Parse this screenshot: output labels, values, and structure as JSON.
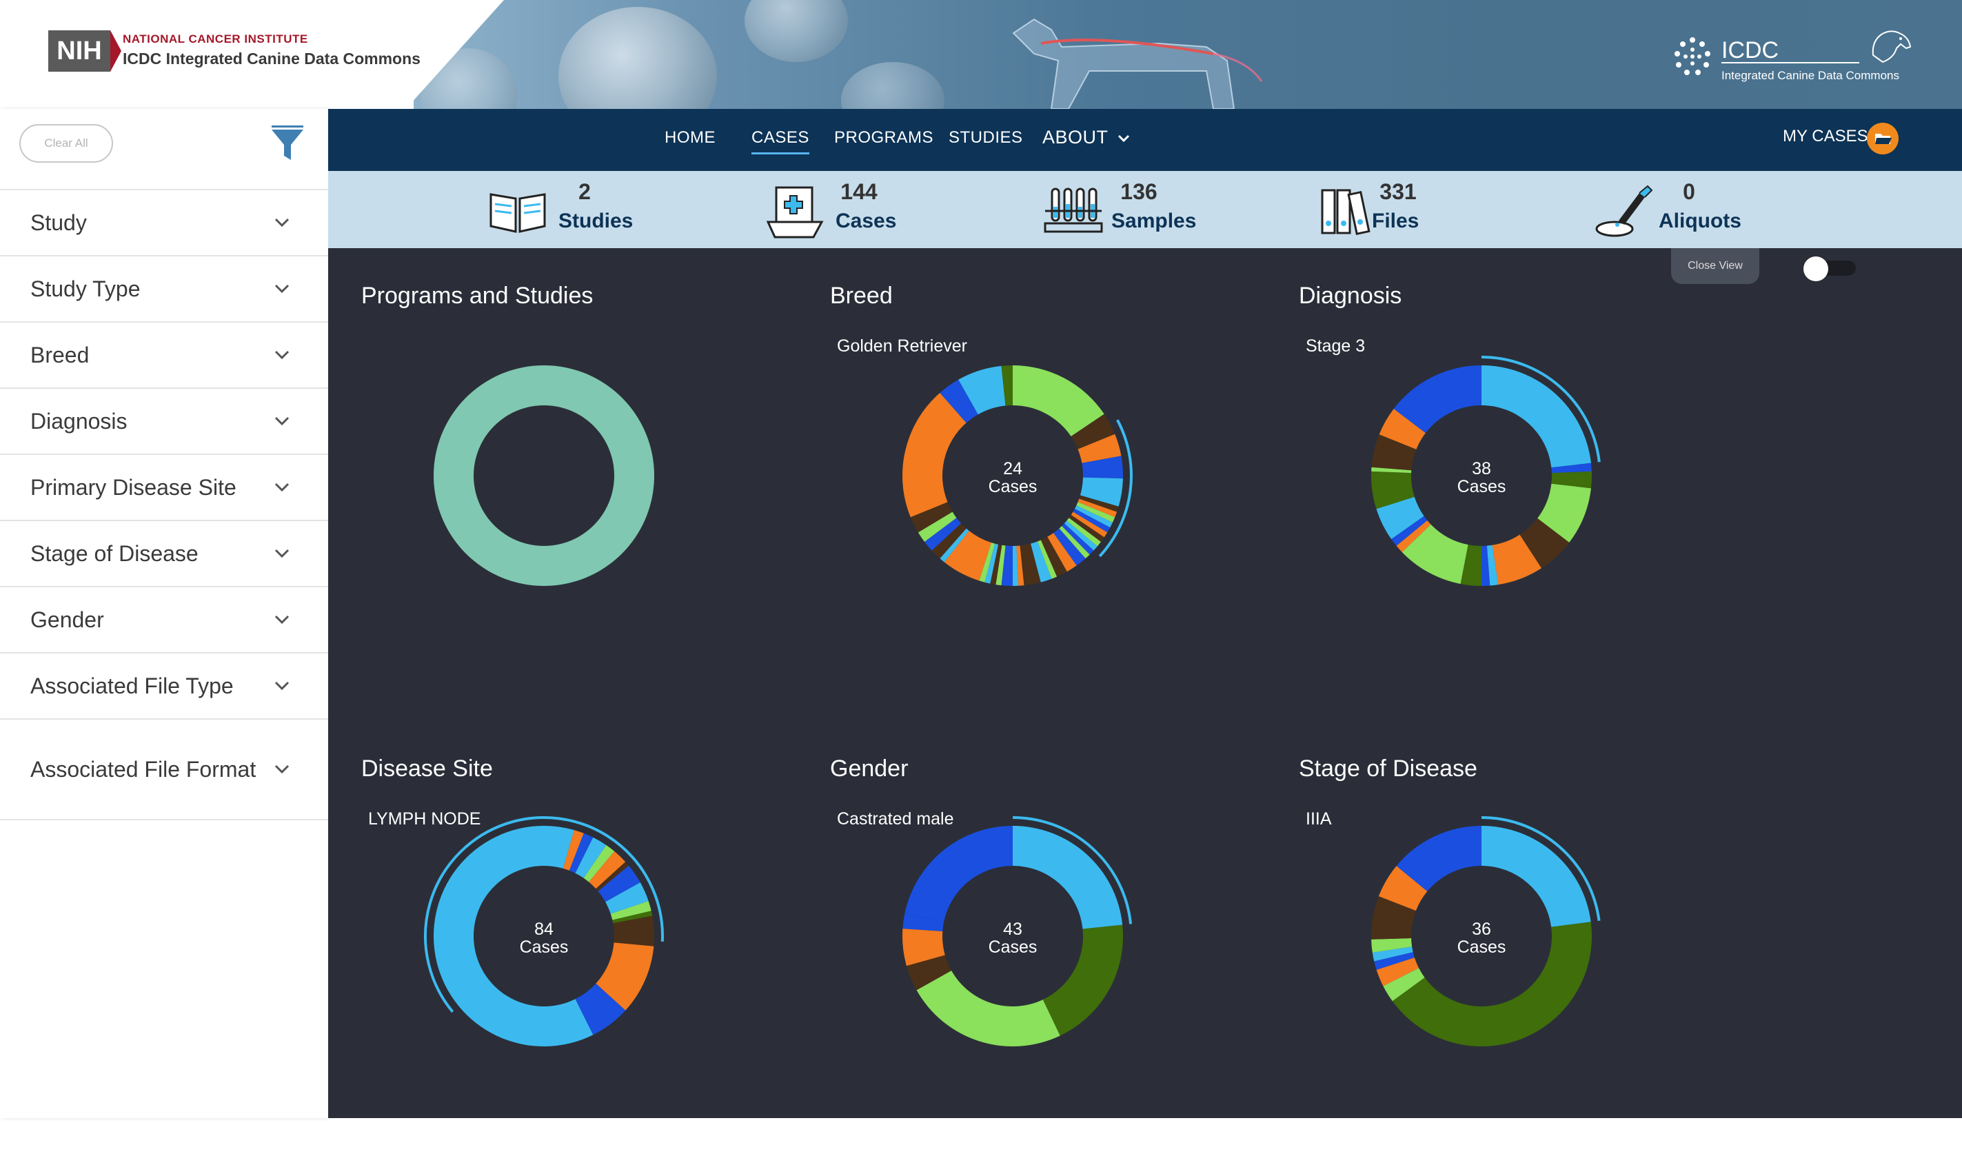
{
  "header": {
    "nci_text": "NATIONAL CANCER INSTITUTE",
    "title": "ICDC Integrated Canine Data Commons",
    "nih_badge": "NIH",
    "logo_acronym": "ICDC",
    "logo_tagline": "Integrated Canine Data Commons"
  },
  "sidebar": {
    "clear_all": "Clear All",
    "facets": [
      {
        "label": "Study"
      },
      {
        "label": "Study Type"
      },
      {
        "label": "Breed"
      },
      {
        "label": "Diagnosis"
      },
      {
        "label": "Primary Disease Site"
      },
      {
        "label": "Stage of Disease"
      },
      {
        "label": "Gender"
      },
      {
        "label": "Associated File Type"
      },
      {
        "label": "Associated File Format"
      }
    ]
  },
  "nav": {
    "items": [
      "HOME",
      "CASES",
      "PROGRAMS",
      "STUDIES",
      "ABOUT"
    ],
    "active": "CASES",
    "my_cases": "MY CASES"
  },
  "stats": [
    {
      "value": "2",
      "label": "Studies",
      "icon": "open-book-icon"
    },
    {
      "value": "144",
      "label": "Cases",
      "icon": "clipboard-case-icon"
    },
    {
      "value": "136",
      "label": "Samples",
      "icon": "test-tubes-icon"
    },
    {
      "value": "331",
      "label": "Files",
      "icon": "file-binders-icon"
    },
    {
      "value": "0",
      "label": "Aliquots",
      "icon": "pipette-dish-icon"
    }
  ],
  "dashboard": {
    "close_view": "Close View",
    "toggle_on": false
  },
  "colors": {
    "light_blue": "#3cbaef",
    "blue": "#1a4fe0",
    "orange": "#f47b20",
    "green": "#8be05c",
    "dark_green": "#3f6e0a",
    "brown": "#4a3019",
    "teal": "#80c8b1",
    "navbar": "#0d3356",
    "stats_bg": "#c8ddeb",
    "dash_bg": "#2b2e38"
  },
  "chart_data": [
    {
      "type": "pie",
      "title": "Programs and Studies",
      "subtitle": "",
      "center_value": "",
      "center_label": "",
      "slices": [
        {
          "label": "",
          "value": 144,
          "color": "#80c8b1"
        }
      ]
    },
    {
      "type": "pie",
      "title": "Breed",
      "subtitle": "Golden Retriever",
      "center_value": "24",
      "center_label": "Cases",
      "slices": [
        {
          "value": 19,
          "color": "#8be05c"
        },
        {
          "value": 4,
          "color": "#4a3019"
        },
        {
          "value": 4,
          "color": "#f47b20"
        },
        {
          "value": 4,
          "color": "#1a4fe0"
        },
        {
          "value": 5,
          "color": "#3cbaef"
        },
        {
          "value": 1,
          "color": "#4a3019"
        },
        {
          "value": 1,
          "color": "#f47b20"
        },
        {
          "value": 1,
          "color": "#8be05c"
        },
        {
          "value": 1,
          "color": "#3cbaef"
        },
        {
          "value": 1,
          "color": "#1a4fe0"
        },
        {
          "value": 1,
          "color": "#f47b20"
        },
        {
          "value": 1,
          "color": "#4a3019"
        },
        {
          "value": 1,
          "color": "#8be05c"
        },
        {
          "value": 1,
          "color": "#3cbaef"
        },
        {
          "value": 1,
          "color": "#1a4fe0"
        },
        {
          "value": 1,
          "color": "#8be05c"
        },
        {
          "value": 2,
          "color": "#1a4fe0"
        },
        {
          "value": 2,
          "color": "#f47b20"
        },
        {
          "value": 2,
          "color": "#4a3019"
        },
        {
          "value": 1,
          "color": "#8be05c"
        },
        {
          "value": 2,
          "color": "#3cbaef"
        },
        {
          "value": 3,
          "color": "#4a3019"
        },
        {
          "value": 1,
          "color": "#f47b20"
        },
        {
          "value": 1,
          "color": "#3cbaef"
        },
        {
          "value": 2,
          "color": "#1a4fe0"
        },
        {
          "value": 1,
          "color": "#8be05c"
        },
        {
          "value": 1,
          "color": "#4a3019"
        },
        {
          "value": 1,
          "color": "#3cbaef"
        },
        {
          "value": 1,
          "color": "#8be05c"
        },
        {
          "value": 7,
          "color": "#f47b20"
        },
        {
          "value": 1,
          "color": "#3cbaef"
        },
        {
          "value": 2,
          "color": "#4a3019"
        },
        {
          "value": 2,
          "color": "#1a4fe0"
        },
        {
          "value": 2,
          "color": "#8be05c"
        },
        {
          "value": 3,
          "color": "#4a3019"
        },
        {
          "value": 24,
          "color": "#f47b20"
        },
        {
          "value": 4,
          "color": "#1a4fe0"
        },
        {
          "value": 8,
          "color": "#3cbaef"
        },
        {
          "value": 2,
          "color": "#3f6e0a"
        }
      ],
      "highlight": {
        "start": 143,
        "length": 24
      }
    },
    {
      "type": "pie",
      "title": "Diagnosis",
      "subtitle": "Stage 3",
      "center_value": "38",
      "center_label": "Cases",
      "slices": [
        {
          "value": 38,
          "color": "#3cbaef"
        },
        {
          "value": 2,
          "color": "#1a4fe0"
        },
        {
          "value": 4,
          "color": "#3f6e0a"
        },
        {
          "value": 14,
          "color": "#8be05c"
        },
        {
          "value": 9,
          "color": "#4a3019"
        },
        {
          "value": 11,
          "color": "#f47b20"
        },
        {
          "value": 2,
          "color": "#3cbaef"
        },
        {
          "value": 2,
          "color": "#1a4fe0"
        },
        {
          "value": 5,
          "color": "#3f6e0a"
        },
        {
          "value": 16,
          "color": "#8be05c"
        },
        {
          "value": 2,
          "color": "#f47b20"
        },
        {
          "value": 2,
          "color": "#1a4fe0"
        },
        {
          "value": 8,
          "color": "#3cbaef"
        },
        {
          "value": 9,
          "color": "#3f6e0a"
        },
        {
          "value": 1,
          "color": "#8be05c"
        },
        {
          "value": 8,
          "color": "#4a3019"
        },
        {
          "value": 7,
          "color": "#f47b20"
        },
        {
          "value": 24,
          "color": "#1a4fe0"
        }
      ],
      "highlight": {
        "start": 0,
        "length": 38
      }
    },
    {
      "type": "pie",
      "title": "Disease Site",
      "subtitle": "LYMPH NODE",
      "center_value": "84",
      "center_label": "Cases",
      "slices": [
        {
          "value": 6,
          "color": "#3cbaef"
        },
        {
          "value": 2,
          "color": "#f47b20"
        },
        {
          "value": 2,
          "color": "#1a4fe0"
        },
        {
          "value": 3,
          "color": "#3cbaef"
        },
        {
          "value": 2,
          "color": "#8be05c"
        },
        {
          "value": 3,
          "color": "#f47b20"
        },
        {
          "value": 1,
          "color": "#4a3019"
        },
        {
          "value": 4,
          "color": "#1a4fe0"
        },
        {
          "value": 4,
          "color": "#3cbaef"
        },
        {
          "value": 2,
          "color": "#8be05c"
        },
        {
          "value": 1,
          "color": "#3f6e0a"
        },
        {
          "value": 6,
          "color": "#4a3019"
        },
        {
          "value": 14,
          "color": "#f47b20"
        },
        {
          "value": 8,
          "color": "#1a4fe0"
        },
        {
          "value": 78,
          "color": "#3cbaef"
        }
      ],
      "highlight": {
        "start": 87,
        "length": 84
      }
    },
    {
      "type": "pie",
      "title": "Gender",
      "subtitle": "Castrated male",
      "center_value": "43",
      "center_label": "Cases",
      "slices": [
        {
          "value": 43,
          "color": "#3cbaef"
        },
        {
          "value": 36,
          "color": "#3f6e0a"
        },
        {
          "value": 44,
          "color": "#8be05c"
        },
        {
          "value": 7,
          "color": "#4a3019"
        },
        {
          "value": 10,
          "color": "#f47b20"
        },
        {
          "value": 4,
          "color": "#1a4fe0"
        },
        {
          "value": 40,
          "color": "#1a4fe0"
        }
      ],
      "highlight": {
        "start": 0,
        "length": 43
      }
    },
    {
      "type": "pie",
      "title": "Stage of Disease",
      "subtitle": "IIIA",
      "center_value": "36",
      "center_label": "Cases",
      "slices": [
        {
          "value": 36,
          "color": "#3cbaef"
        },
        {
          "value": 66,
          "color": "#3f6e0a"
        },
        {
          "value": 4,
          "color": "#8be05c"
        },
        {
          "value": 4,
          "color": "#f47b20"
        },
        {
          "value": 2,
          "color": "#1a4fe0"
        },
        {
          "value": 2,
          "color": "#3cbaef"
        },
        {
          "value": 3,
          "color": "#8be05c"
        },
        {
          "value": 10,
          "color": "#4a3019"
        },
        {
          "value": 8,
          "color": "#f47b20"
        },
        {
          "value": 22,
          "color": "#1a4fe0"
        }
      ],
      "highlight": {
        "start": 0,
        "length": 36
      }
    }
  ]
}
